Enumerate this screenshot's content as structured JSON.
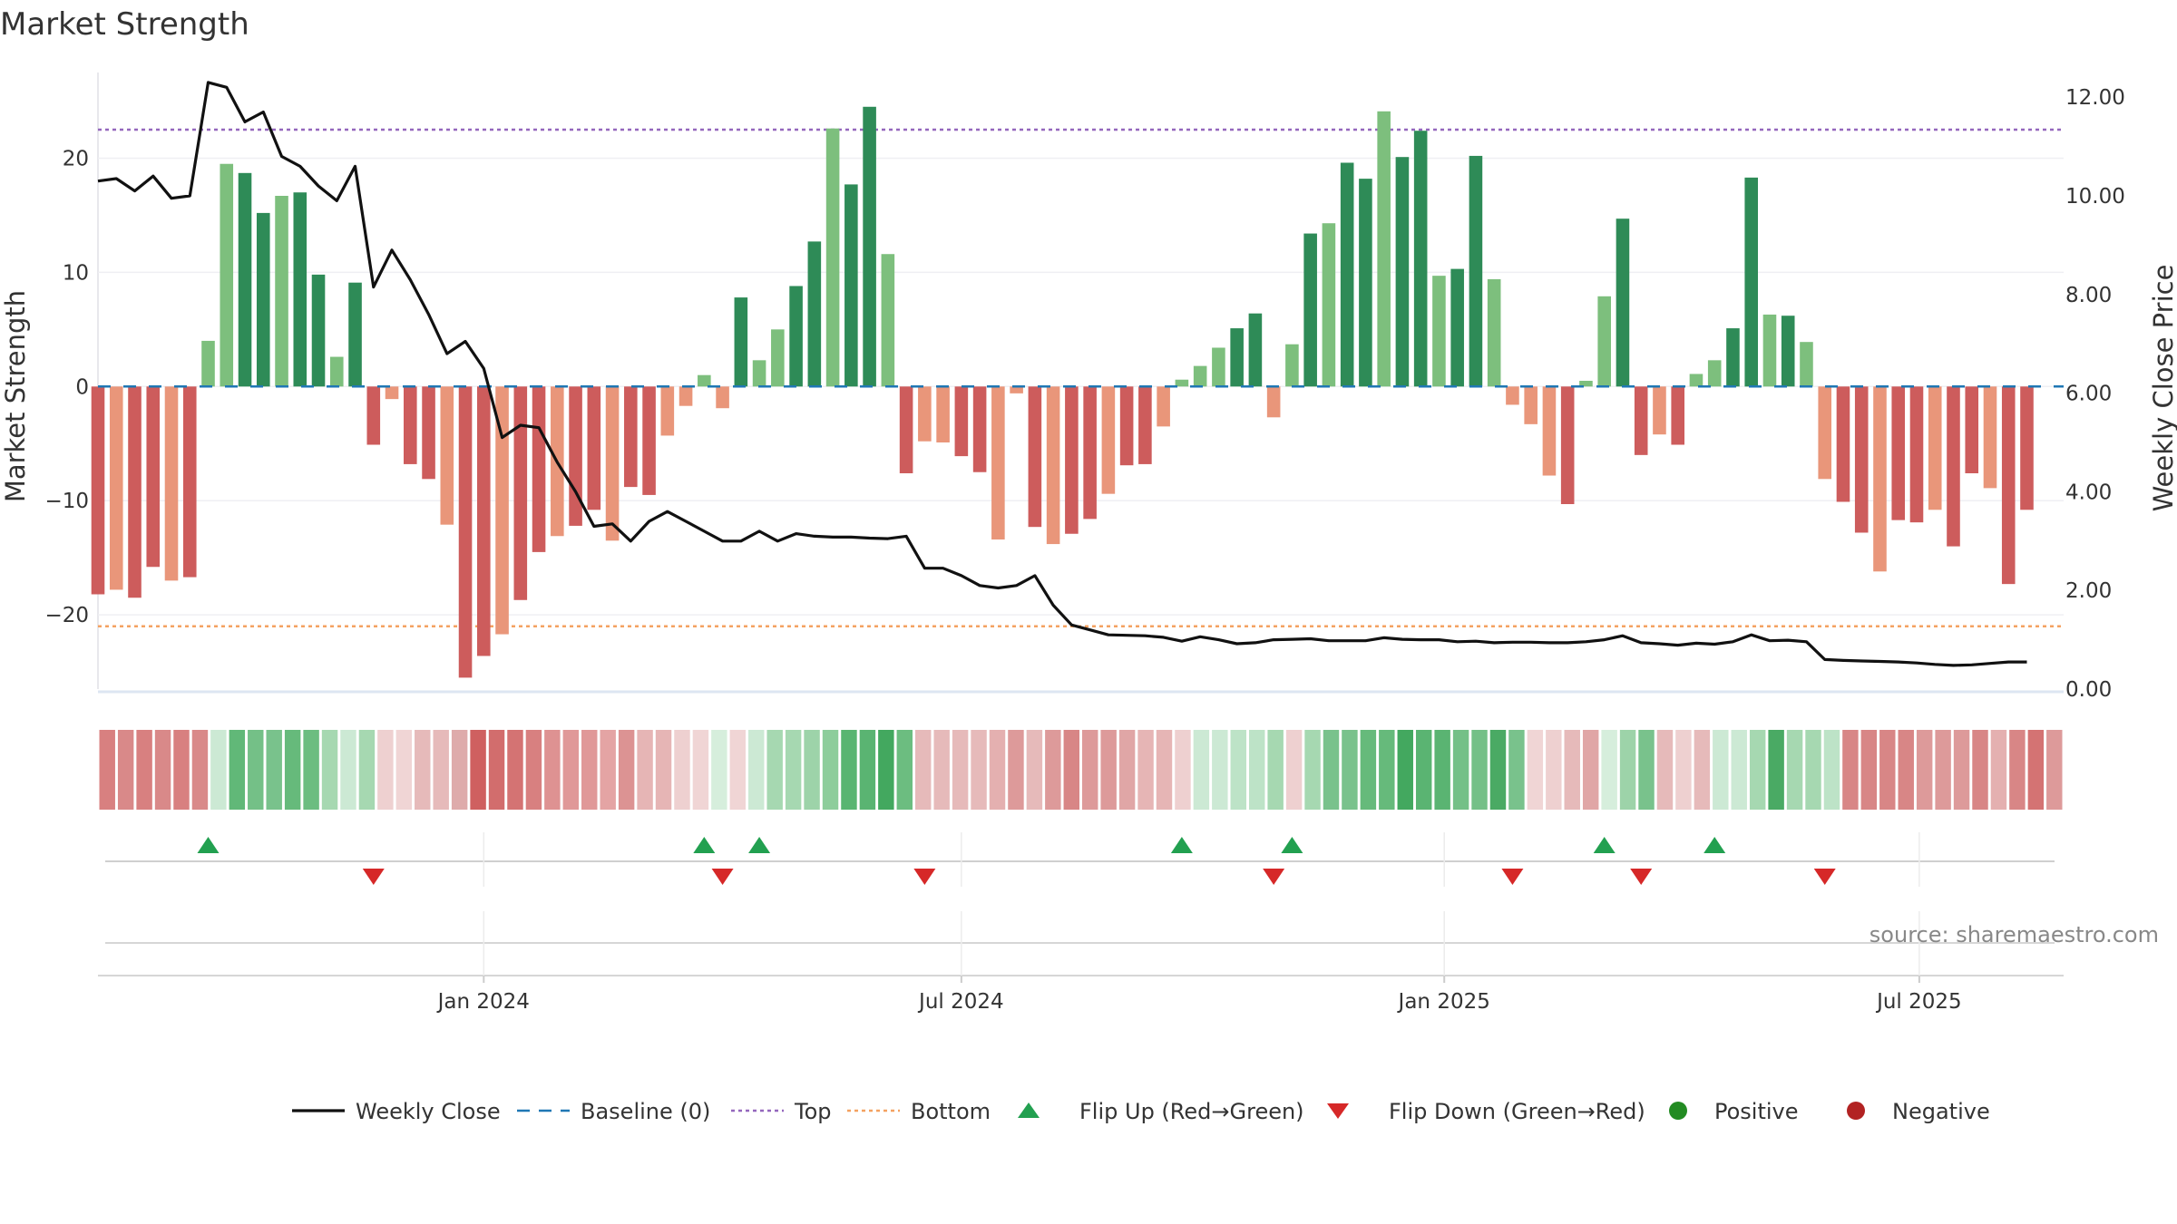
{
  "chart_data": {
    "type": "bar",
    "title": "Market Strength",
    "ylabel_left": "Market Strength",
    "ylabel_right": "Weekly Close Price",
    "ylim_left": [
      -26.5,
      27.5
    ],
    "ylim_right": [
      0,
      12.5
    ],
    "yticks_left": [
      -20,
      -10,
      0,
      10,
      20
    ],
    "ytick_labels_left": [
      "−20",
      "−10",
      "0",
      "10",
      "20"
    ],
    "yticks_right": [
      0,
      2,
      4,
      6,
      8,
      10,
      12
    ],
    "ytick_labels_right": [
      "0.00",
      "2.00",
      "4.00",
      "6.00",
      "8.00",
      "10.00",
      "12.00"
    ],
    "x_start": "2023-08-07",
    "x_end": "2025-08-25",
    "xticks": [
      {
        "date": "2024-01-01",
        "label": "Jan 2024"
      },
      {
        "date": "2024-07-01",
        "label": "Jul 2024"
      },
      {
        "date": "2025-01-01",
        "label": "Jan 2025"
      },
      {
        "date": "2025-07-01",
        "label": "Jul 2025"
      }
    ],
    "top_line": 22.5,
    "bottom_line": -21,
    "baseline": 0,
    "grid": true,
    "legend_position": "bottom",
    "source": "source: sharemaestro.com",
    "strength": [
      -18.2,
      -17.8,
      -18.5,
      -15.8,
      -17,
      -16.7,
      4,
      19.5,
      18.7,
      15.2,
      16.7,
      17,
      9.8,
      2.6,
      9.1,
      -5.1,
      -1.1,
      -6.8,
      -8.1,
      -12.1,
      -25.5,
      -23.6,
      -21.7,
      -18.7,
      -14.5,
      -13.1,
      -12.2,
      -10.8,
      -13.5,
      -8.8,
      -9.5,
      -4.3,
      -1.7,
      1,
      -1.9,
      7.8,
      2.3,
      5,
      8.8,
      12.7,
      22.6,
      17.7,
      24.5,
      11.6,
      -7.6,
      -4.8,
      -4.9,
      -6.1,
      -7.5,
      -13.4,
      -0.6,
      -12.3,
      -13.8,
      -12.9,
      -11.6,
      -9.4,
      -6.9,
      -6.8,
      -3.5,
      0.6,
      1.8,
      3.4,
      5.1,
      6.4,
      -2.7,
      3.7,
      13.4,
      14.3,
      19.6,
      18.2,
      24.1,
      20.1,
      22.4,
      9.7,
      10.3,
      20.2,
      9.4,
      -1.6,
      -3.3,
      -7.8,
      -10.3,
      0.5,
      7.9,
      14.7,
      -6,
      -4.2,
      -5.1,
      1.1,
      2.3,
      5.1,
      18.3,
      6.3,
      6.2,
      3.9,
      -8.1,
      -10.1,
      -12.8,
      -16.2,
      -11.7,
      -11.9,
      -10.8,
      -14,
      -7.6,
      -8.9,
      -17.3,
      -10.8
    ],
    "weekly_close": [
      10.3,
      10.35,
      10.1,
      10.4,
      9.95,
      10,
      12.3,
      12.2,
      11.5,
      11.7,
      10.8,
      10.6,
      10.2,
      9.9,
      10.6,
      8.15,
      8.9,
      8.3,
      7.6,
      6.8,
      7.05,
      6.5,
      5.1,
      5.35,
      5.3,
      4.6,
      4,
      3.3,
      3.35,
      3,
      3.4,
      3.6,
      3.4,
      3.2,
      3,
      3,
      3.2,
      3,
      3.15,
      3.1,
      3.08,
      3.08,
      3.06,
      3.05,
      3.1,
      2.45,
      2.45,
      2.3,
      2.1,
      2.05,
      2.1,
      2.3,
      1.7,
      1.3,
      1.2,
      1.1,
      1.09,
      1.08,
      1.05,
      0.97,
      1.06,
      1,
      0.92,
      0.94,
      1,
      1.01,
      1.02,
      0.98,
      0.98,
      0.98,
      1.04,
      1.01,
      1,
      1,
      0.96,
      0.97,
      0.94,
      0.95,
      0.95,
      0.94,
      0.94,
      0.96,
      1,
      1.08,
      0.94,
      0.92,
      0.89,
      0.93,
      0.91,
      0.96,
      1.1,
      0.98,
      0.99,
      0.96,
      0.6,
      0.58,
      0.57,
      0.56,
      0.55,
      0.53,
      0.5,
      0.48,
      0.49,
      0.52,
      0.55,
      0.55
    ],
    "heat_colors": [
      "#d88080",
      "#d98989",
      "#d88080",
      "#d98989",
      "#d88080",
      "#d98989",
      "#cce9d4",
      "#61b878",
      "#74c087",
      "#79c28c",
      "#66ba7b",
      "#6cbd80",
      "#a6d8b1",
      "#cce9d4",
      "#a6d8b1",
      "#eed0d0",
      "#f0d5d5",
      "#e6baba",
      "#e6baba",
      "#deabab",
      "#cf6060",
      "#d26d6d",
      "#d47373",
      "#d88080",
      "#de9292",
      "#e09898",
      "#e09898",
      "#e4a4a4",
      "#dc9393",
      "#e6b5b5",
      "#e6b5b5",
      "#eed0d0",
      "#f0d5d5",
      "#d6eedc",
      "#f0d5d5",
      "#cce9d4",
      "#a6d8b1",
      "#a6d8b1",
      "#9dd3a9",
      "#8dcd9b",
      "#59b571",
      "#5ab472",
      "#43a85f",
      "#6cbd80",
      "#e6baba",
      "#e6baba",
      "#e6baba",
      "#e6baba",
      "#e4b0b0",
      "#dd9a9a",
      "#e6baba",
      "#dd9a9a",
      "#d88686",
      "#dd9a9a",
      "#dd9a9a",
      "#e0a6a6",
      "#e6b5b5",
      "#e6b5b5",
      "#eed0d0",
      "#cce9d4",
      "#cce9d4",
      "#bde3c7",
      "#bde3c7",
      "#a6d8b1",
      "#eed0d0",
      "#a6d8b1",
      "#79c28c",
      "#79c28c",
      "#66ba7b",
      "#66ba7b",
      "#43a85f",
      "#5ab472",
      "#5ab472",
      "#74c087",
      "#74c087",
      "#4aaa64",
      "#79c28c",
      "#f0d5d5",
      "#eed0d0",
      "#e6baba",
      "#e0a6a6",
      "#d6eedc",
      "#9dd3a9",
      "#79c28c",
      "#e6baba",
      "#eed0d0",
      "#e6baba",
      "#cce9d4",
      "#cce9d4",
      "#a6d8b1",
      "#4aaa64",
      "#a6d8b1",
      "#a6d8b1",
      "#bde3c7",
      "#d88686",
      "#d88686",
      "#d88686",
      "#d88686",
      "#dd9a9a",
      "#dd9a9a",
      "#dd9a9a",
      "#d88686",
      "#e4b0b0",
      "#d88686",
      "#d47373",
      "#dd9a9a"
    ],
    "flip_up_weeks": [
      6,
      33,
      36,
      59,
      65,
      82,
      88
    ],
    "flip_down_weeks": [
      15,
      34,
      45,
      64,
      77,
      84,
      94
    ],
    "legend": [
      {
        "key": "weekly_close",
        "label": "Weekly Close"
      },
      {
        "key": "baseline",
        "label": "Baseline (0)"
      },
      {
        "key": "top",
        "label": "Top"
      },
      {
        "key": "bottom",
        "label": "Bottom"
      },
      {
        "key": "flip_up",
        "label": "Flip Up (Red→Green)"
      },
      {
        "key": "flip_down",
        "label": "Flip Down (Green→Red)"
      },
      {
        "key": "positive",
        "label": "Positive"
      },
      {
        "key": "negative",
        "label": "Negative"
      }
    ],
    "colors": {
      "positive_dark": "#2e8b57",
      "positive_light": "#7dbf7d",
      "negative_dark": "#cd5c5c",
      "negative_light": "#e9967a",
      "close_line": "#111111",
      "baseline": "#1f77b4",
      "top": "#9467bd",
      "bottom": "#f4a261",
      "flip_up": "#22a050",
      "flip_down": "#d62828",
      "legend_positive": "#228b22",
      "legend_negative": "#b22222",
      "grid": "#e8e8ec"
    }
  }
}
